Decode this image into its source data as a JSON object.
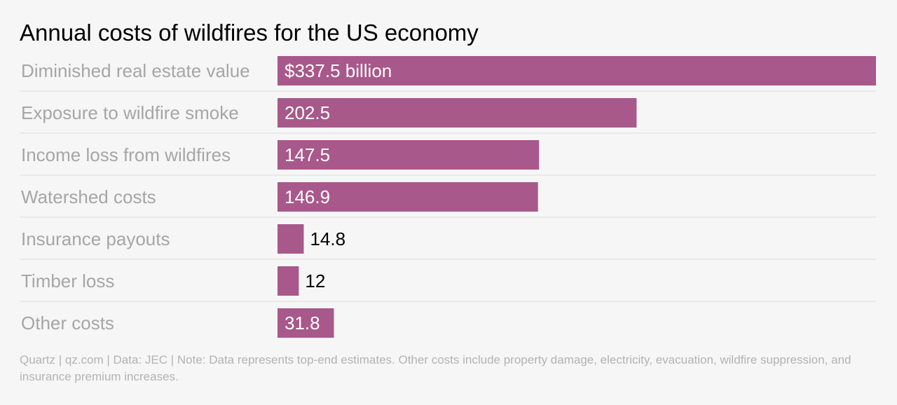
{
  "chart_data": {
    "type": "bar",
    "orientation": "horizontal",
    "title": "Annual costs of wildfires for the US economy",
    "categories": [
      "Diminished real estate value",
      "Exposure to wildfire smoke",
      "Income loss from wildfires",
      "Watershed costs",
      "Insurance payouts",
      "Timber loss",
      "Other costs"
    ],
    "values": [
      337.5,
      202.5,
      147.5,
      146.9,
      14.8,
      12,
      31.8
    ],
    "value_labels": [
      "$337.5 billion",
      "202.5",
      "147.5",
      "146.9",
      "14.8",
      "12",
      "31.8"
    ],
    "xlim": [
      0,
      337.5
    ],
    "bar_color": "#a8588a",
    "label_color": "#a6a6a6",
    "grid": false
  },
  "footer": {
    "source_note": "Quartz | qz.com | Data: JEC | Note: Data represents top-end estimates. Other costs include property damage, electricity, evacuation, wildfire suppression, and insurance premium increases."
  }
}
